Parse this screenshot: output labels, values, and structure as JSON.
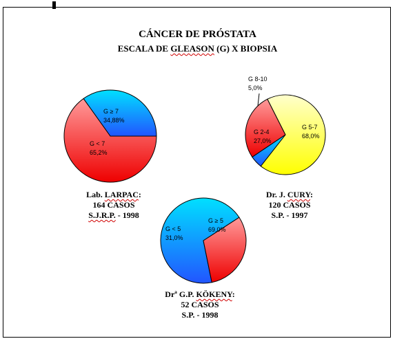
{
  "title": "CÁNCER DE PRÓSTATA",
  "subtitle": "ESCALA DE GLEASON (G) X BIOPSIA",
  "chart_data": [
    {
      "type": "pie",
      "caption": [
        "Lab. LARPAC:",
        "164 CASOS",
        "S.J.R.P. - 1998"
      ],
      "slices": [
        {
          "label": "G ≥ 7",
          "value": 34.88,
          "value_label": "34,88%",
          "color": "#3399ff"
        },
        {
          "label": "G < 7",
          "value": 65.2,
          "value_label": "65,2%",
          "color": "#ff3333"
        }
      ]
    },
    {
      "type": "pie",
      "caption": [
        "Dr. J. CURY:",
        "120 CASOS",
        "S.P. - 1997"
      ],
      "slices": [
        {
          "label": "G 5-7",
          "value": 68.0,
          "value_label": "68,0%",
          "color": "#ffff55"
        },
        {
          "label": "G 2-4",
          "value": 27.0,
          "value_label": "27,0%",
          "color": "#ff4444"
        },
        {
          "label": "G 8-10",
          "value": 5.0,
          "value_label": "5,0%",
          "color": "#33aaff"
        }
      ]
    },
    {
      "type": "pie",
      "caption": [
        "Drª G.P. KÖKENY:",
        "52 CASOS",
        "S.P. - 1998"
      ],
      "slices": [
        {
          "label": "G ≥ 5",
          "value": 69.0,
          "value_label": "69,0%",
          "color": "#2299ff"
        },
        {
          "label": "G < 5",
          "value": 31.0,
          "value_label": "31,0%",
          "color": "#ff4444"
        }
      ]
    }
  ]
}
